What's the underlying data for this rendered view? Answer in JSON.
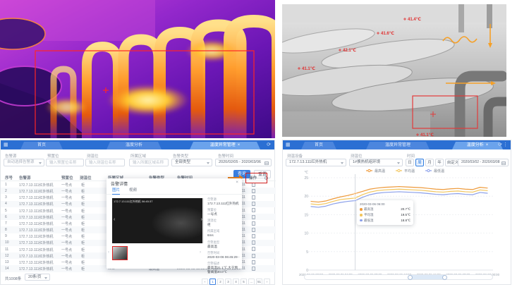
{
  "thermal_view": {
    "description": "infrared-thermal-camera-frame",
    "roi_color": "#ff2626"
  },
  "ir_view": {
    "description": "grayscale-camera-frame",
    "marker_color": "#e03030",
    "markers": [
      {
        "x": 178,
        "y": 20,
        "label": "41.4℃"
      },
      {
        "x": 140,
        "y": 40,
        "label": "41.6℃"
      },
      {
        "x": 86,
        "y": 64,
        "label": "42.1℃"
      },
      {
        "x": 28,
        "y": 90,
        "label": "41.1℃"
      },
      {
        "x": 196,
        "y": 184,
        "label": "41.1℃"
      }
    ]
  },
  "alarm_panel": {
    "tabs": [
      {
        "label": "首页",
        "active": false
      },
      {
        "label": "温度分析",
        "active": false
      },
      {
        "label": "温度异常管理",
        "active": true,
        "closable": "×"
      }
    ],
    "filters": [
      {
        "label": "告警源",
        "type": "select",
        "value": "自动选择告警源"
      },
      {
        "label": "预置位",
        "type": "input",
        "placeholder": "输入预置位名称"
      },
      {
        "label": "测温位",
        "type": "input",
        "placeholder": "输入测温位名称"
      },
      {
        "label": "所属区域",
        "type": "input",
        "placeholder": "输入所属区域名称"
      },
      {
        "label": "告警类型",
        "type": "select",
        "value": "全部类型"
      },
      {
        "label": "告警时间",
        "type": "date",
        "value": "2020/02/05 - 2020/03/06"
      }
    ],
    "buttons": {
      "query": "查询",
      "reset": "重置"
    },
    "table": {
      "headers": [
        "序号",
        "告警源",
        "预置位",
        "测温位",
        "所属区域",
        "告警类型",
        "告警时间",
        "操作"
      ],
      "rows": [
        {
          "no": "1",
          "source": "172.7.13.111红外热机",
          "preset": "一号点",
          "spot": "柜",
          "region": "6ms",
          "type": "最高温",
          "time": "2020-03-05 19:52:08 - 2020-03-05 19:52:11"
        },
        {
          "no": "2",
          "source": "172.7.13.111红外热机",
          "preset": "一号点",
          "spot": "柜",
          "region": "6ms",
          "type": "最高温",
          "time": "2020-03-05 19:52:08 - 2020-03-05 19:52:11"
        },
        {
          "no": "3",
          "source": "172.7.13.111红外热机",
          "preset": "一号点",
          "spot": "柜",
          "region": "6ms",
          "type": "最高温",
          "time": "2020-03-05 19:52:08 - 2020-03-05 19:52:11"
        },
        {
          "no": "4",
          "source": "172.7.13.111红外热机",
          "preset": "一号点",
          "spot": "柜",
          "region": "6ms",
          "type": "最高温",
          "time": "2020-03-05 19:52:08 - 2020-03-05 19:52:11"
        },
        {
          "no": "5",
          "source": "172.7.13.111红外热机",
          "preset": "一号点",
          "spot": "柜",
          "region": "6ms",
          "type": "最高温",
          "time": "2020-03-05 19:52:08 - 2020-03-05 19:52:11"
        },
        {
          "no": "6",
          "source": "172.7.13.111红外热机",
          "preset": "一号点",
          "spot": "柜",
          "region": "6ms",
          "type": "最高温",
          "time": "2020-03-05 19:52:08 - 2020-03-05 19:52:11"
        },
        {
          "no": "7",
          "source": "172.7.13.111红外热机",
          "preset": "一号点",
          "spot": "柜",
          "region": "6ms",
          "type": "最高温",
          "time": "2020-03-05 19:52:08 - 2020-03-05 19:52:11"
        },
        {
          "no": "8",
          "source": "172.7.13.111红外热机",
          "preset": "一号点",
          "spot": "柜",
          "region": "6ms",
          "type": "最高温",
          "time": "2020-03-05 19:52:08 - 2020-03-05 19:52:11"
        },
        {
          "no": "9",
          "source": "172.7.13.111红外热机",
          "preset": "一号点",
          "spot": "柜",
          "region": "6ms",
          "type": "最高温",
          "time": "2020-03-05 19:52:08 - 2020-03-05 19:52:11"
        },
        {
          "no": "10",
          "source": "172.7.13.111红外热机",
          "preset": "一号点",
          "spot": "柜",
          "region": "6ms",
          "type": "最高温",
          "time": "2020-03-05 19:52:08 - 2020-03-05 19:52:11"
        },
        {
          "no": "11",
          "source": "172.7.13.111红外热机",
          "preset": "一号点",
          "spot": "柜",
          "region": "6ms",
          "type": "最高温",
          "time": "2020-03-05 19:52:08 - 2020-03-05 19:52:11"
        },
        {
          "no": "12",
          "source": "172.7.13.111红外热机",
          "preset": "一号点",
          "spot": "柜",
          "region": "6ms",
          "type": "最高温",
          "time": "2020-03-05 19:52:08 - 2020-03-05 19:52:11"
        },
        {
          "no": "13",
          "source": "172.7.13.111红外热机",
          "preset": "一号点",
          "spot": "柜",
          "region": "6ms",
          "type": "最高温",
          "time": "2020-03-05 19:52:08 - 2020-03-05 19:52:11"
        },
        {
          "no": "14",
          "source": "172.7.13.111红外热机",
          "preset": "一号点",
          "spot": "柜",
          "region": "6ms",
          "type": "最高温",
          "time": "2020-03-05 19:52:08 - 2020-03-05 19:52:11"
        }
      ]
    },
    "pagination": {
      "total": "共1008条",
      "page_size": "20条/页",
      "pages": [
        "‹",
        "1",
        "2",
        "3",
        "4",
        "5",
        "…",
        "51",
        "›"
      ],
      "active_page": "1"
    },
    "popup": {
      "title": "告警详情",
      "tabs": [
        "图片",
        "视频"
      ],
      "active_tab": "图片",
      "image_caption": "172.7.13.111红外热机 06:45:37",
      "details": [
        {
          "label": "告警源",
          "value": "172.7.13.111红外热机"
        },
        {
          "label": "预置位",
          "value": "一号点"
        },
        {
          "label": "测温位",
          "value": "柜"
        },
        {
          "label": "所属区域",
          "value": "6ms"
        },
        {
          "label": "告警类型",
          "value": "最高温"
        },
        {
          "label": "告警时间",
          "value": "2020-03-06 06:45:29 -"
        },
        {
          "label": "告警描述",
          "value": "最高温31.1℃,大于预警阈值30.0℃"
        }
      ]
    }
  },
  "analysis_panel": {
    "tabs": [
      {
        "label": "首页",
        "active": false
      },
      {
        "label": "温度异常管理",
        "active": false
      },
      {
        "label": "温度分析",
        "active": true,
        "closable": "×"
      }
    ],
    "filters": {
      "device": {
        "label": "测温设备",
        "value": "172.7.13.111红外热机"
      },
      "spot": {
        "label": "测温位",
        "value": "1#换热机组环境"
      },
      "time": {
        "label": "时间",
        "options": [
          "日",
          "周",
          "月",
          "年",
          "自定义"
        ],
        "active": "周"
      },
      "date": {
        "value": "2020/03/02 - 2020/03/08"
      }
    },
    "chart_data": {
      "type": "line",
      "unit": "℃",
      "ylim": [
        0,
        25
      ],
      "y_ticks": [
        0,
        5,
        10,
        15,
        20,
        25
      ],
      "x_ticks": [
        "2020-03-06 00:00",
        "2020-03-06 04:00",
        "2020-03-06 08:00",
        "2020-03-06 12:00",
        "2020-03-06 16:00",
        "2020-03-06 20:00",
        "2020-03-07 00:00"
      ],
      "legend_position": "top",
      "grid": true,
      "series": [
        {
          "name": "最高温",
          "color": "#ee9a3a",
          "values": [
            18.6,
            18.4,
            18.7,
            19.3,
            19.8,
            20.2,
            20.7,
            21.3,
            21.9,
            22.2,
            22.4,
            22.5,
            22.6,
            22.5,
            22.4,
            22.3,
            22.1,
            21.9,
            21.8,
            22.0,
            22.1,
            21.9,
            21.8,
            22.4,
            22.2
          ]
        },
        {
          "name": "平均温",
          "color": "#f2c55c",
          "values": [
            17.9,
            17.7,
            18.0,
            18.6,
            19.1,
            19.3,
            19.5,
            20.4,
            21.1,
            21.5,
            21.7,
            21.8,
            21.9,
            21.8,
            21.7,
            21.6,
            21.4,
            21.2,
            21.1,
            21.3,
            21.4,
            21.2,
            21.1,
            21.7,
            21.5
          ]
        },
        {
          "name": "最低温",
          "color": "#8ba0ea",
          "values": [
            17.2,
            17.0,
            17.3,
            17.9,
            18.3,
            18.6,
            18.8,
            19.7,
            20.4,
            20.8,
            21.0,
            21.1,
            21.2,
            21.1,
            21.0,
            20.9,
            20.7,
            20.5,
            20.4,
            20.6,
            20.7,
            20.5,
            20.4,
            21.0,
            20.8
          ]
        }
      ],
      "tooltip": {
        "title": "2020-03-06 06:00",
        "index": 6,
        "rows": [
          {
            "name": "最高温",
            "value": "20.7℃",
            "color": "#ee9a3a"
          },
          {
            "name": "平均温",
            "value": "19.5℃",
            "color": "#f2c55c"
          },
          {
            "name": "最低温",
            "value": "18.8℃",
            "color": "#8ba0ea"
          }
        ]
      }
    }
  }
}
